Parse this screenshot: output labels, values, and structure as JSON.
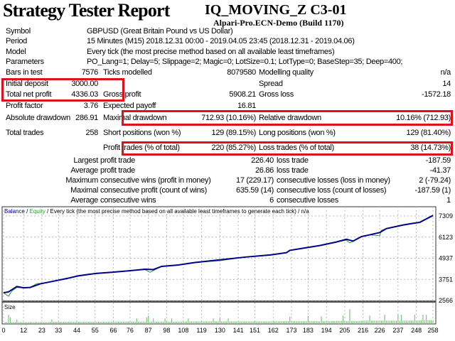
{
  "header": {
    "title": "Strategy Tester Report",
    "expert": "IQ_MOVING_Z C3-01",
    "server": "Alpari-Pro.ECN-Demo (Build 1170)"
  },
  "info": [
    {
      "label": "Symbol",
      "value": "GBPUSD (Great Britain Pound vs US Dollar)"
    },
    {
      "label": "Period",
      "value": "15 Minutes (M15) 2018.12.31 00:00 - 2019.04.05 23:45 (2018.12.31 - 2019.04.06)"
    },
    {
      "label": "Model",
      "value": "Every tick (the most precise method based on all available least timeframes)"
    },
    {
      "label": "Parameters",
      "value": "PO_Lang=1; Delay=5; Slippage=2; Magic=0; LotSize=0.1; LotType=0; BaseStep=35; Deep=400;"
    }
  ],
  "stats": {
    "bars": {
      "l1": "Bars in test",
      "v1": "7576",
      "l2": "Ticks modelled",
      "v2": "8079580",
      "l3": "Modelling quality",
      "v3": "n/a"
    },
    "deposit": {
      "l1": "Initial deposit",
      "v1": "3000.00",
      "l3": "Spread",
      "v3": "14"
    },
    "net": {
      "l1": "Total net profit",
      "v1": "4336.03",
      "l2": "Gross profit",
      "v2": "5908.21",
      "l3": "Gross loss",
      "v3": "-1572.18"
    },
    "pf": {
      "l1": "Profit factor",
      "v1": "3.76",
      "l2": "Expected payoff",
      "v2": "16.81"
    },
    "dd": {
      "l1": "Absolute drawdown",
      "v1": "286.91",
      "l2": "Maximal drawdown",
      "v2": "712.93 (10.16%)",
      "l3": "Relative drawdown",
      "v3": "10.16% (712.93)"
    },
    "trades": {
      "l1": "Total trades",
      "v1": "258",
      "l2": "Short positions (won %)",
      "v2": "129 (89.15%)",
      "l3": "Long positions (won %)",
      "v3": "129 (81.40%)"
    },
    "pt": {
      "l2": "Profit trades (% of total)",
      "v2": "220 (85.27%)",
      "l3": "Loss trades (% of total)",
      "v3": "38 (14.73%)"
    },
    "largest": {
      "cat": "Largest",
      "l2": "profit trade",
      "v2": "226.40",
      "l3": "loss trade",
      "v3": "-187.59"
    },
    "average": {
      "cat": "Average",
      "l2": "profit trade",
      "v2": "26.86",
      "l3": "loss trade",
      "v3": "-41.37"
    },
    "maximum": {
      "cat": "Maximum",
      "l2": "consecutive wins (profit in money)",
      "v2": "17 (229.17)",
      "l3": "consecutive losses (loss in money)",
      "v3": "2 (-79.24)"
    },
    "maximal": {
      "cat": "Maximal",
      "l2": "consecutive profit (count of wins)",
      "v2": "635.59 (14)",
      "l3": "consecutive loss (count of losses)",
      "v3": "-187.59 (1)"
    },
    "avgcons": {
      "cat": "Average",
      "l2": "consecutive wins",
      "v2": "6",
      "l3": "consecutive losses",
      "v3": "1"
    }
  },
  "chart_data": {
    "type": "line",
    "legend": {
      "balance": "Balance",
      "sep1": " / ",
      "equity": "Equity",
      "rest": " / Every tick (the most precise method based on all available least timeframes to generate each tick) / n/a"
    },
    "colors": {
      "balance": "#00008b",
      "equity": "#2e9e2e",
      "size": "#7cc47c",
      "grid": "#b8b8b8",
      "highlight": "#e0101a"
    },
    "yticks": [
      "7309",
      "6123",
      "4937",
      "3751",
      "2566"
    ],
    "ylim": [
      2566,
      7309
    ],
    "xlim": [
      0,
      258
    ],
    "xticks": [
      "0",
      "12",
      "23",
      "33",
      "44",
      "55",
      "66",
      "76",
      "87",
      "98",
      "108",
      "119",
      "130",
      "141",
      "151",
      "162",
      "173",
      "183",
      "194",
      "205",
      "216",
      "226",
      "237",
      "248",
      "258"
    ],
    "size_label": "Size",
    "balance": {
      "x": [
        0,
        3,
        8,
        12,
        16,
        22,
        30,
        38,
        45,
        55,
        65,
        75,
        85,
        90,
        95,
        105,
        115,
        130,
        145,
        160,
        170,
        172,
        180,
        190,
        200,
        206,
        210,
        215,
        220,
        226,
        230,
        240,
        245,
        250,
        258
      ],
      "y": [
        3000,
        3050,
        3350,
        3280,
        3300,
        3500,
        3650,
        3800,
        3950,
        4080,
        4150,
        4230,
        4320,
        4300,
        4480,
        4560,
        4700,
        4850,
        5000,
        5120,
        5250,
        5380,
        5500,
        5650,
        5850,
        6000,
        5900,
        6150,
        6250,
        6380,
        6600,
        6800,
        6880,
        6950,
        7336
      ]
    },
    "equity": {
      "x": [
        0,
        3,
        5,
        8,
        12,
        16,
        20,
        22,
        30,
        38,
        45,
        55,
        65,
        75,
        85,
        88,
        90,
        95,
        105,
        115,
        130,
        145,
        160,
        170,
        172,
        180,
        190,
        200,
        206,
        208,
        210,
        215,
        220,
        226,
        227,
        230,
        240,
        245,
        250,
        258
      ],
      "y": [
        3000,
        2800,
        3100,
        3300,
        3280,
        3300,
        3520,
        3520,
        3650,
        3820,
        3950,
        4080,
        4150,
        4230,
        4300,
        4150,
        4250,
        4480,
        4560,
        4700,
        4800,
        5000,
        5100,
        5250,
        5380,
        5500,
        5650,
        5850,
        5950,
        5800,
        5880,
        6150,
        6250,
        6200,
        6500,
        6600,
        6800,
        6880,
        6950,
        7336
      ]
    },
    "size": {
      "base": [
        [
          0,
          0.1
        ],
        [
          30,
          0.12
        ],
        [
          65,
          0.13
        ],
        [
          110,
          0.14
        ],
        [
          165,
          0.15
        ],
        [
          195,
          0.16
        ],
        [
          215,
          0.18
        ],
        [
          250,
          0.2
        ]
      ],
      "spikes": [
        [
          3,
          0.5
        ],
        [
          4,
          0.35
        ],
        [
          8,
          0.25
        ],
        [
          29,
          0.25
        ],
        [
          80,
          0.3
        ],
        [
          86,
          0.35
        ],
        [
          87,
          0.45
        ],
        [
          90,
          0.3
        ],
        [
          97,
          0.3
        ],
        [
          101,
          0.3
        ],
        [
          111,
          0.3
        ],
        [
          126,
          0.3
        ],
        [
          130,
          0.3
        ],
        [
          135,
          0.3
        ],
        [
          172,
          0.4
        ],
        [
          183,
          0.45
        ],
        [
          191,
          0.4
        ],
        [
          204,
          0.45
        ],
        [
          208,
          0.8
        ],
        [
          220,
          0.45
        ],
        [
          229,
          0.5
        ],
        [
          237,
          0.5
        ],
        [
          239,
          0.5
        ],
        [
          247,
          0.5
        ],
        [
          252,
          0.5
        ],
        [
          254,
          0.5
        ]
      ]
    }
  }
}
